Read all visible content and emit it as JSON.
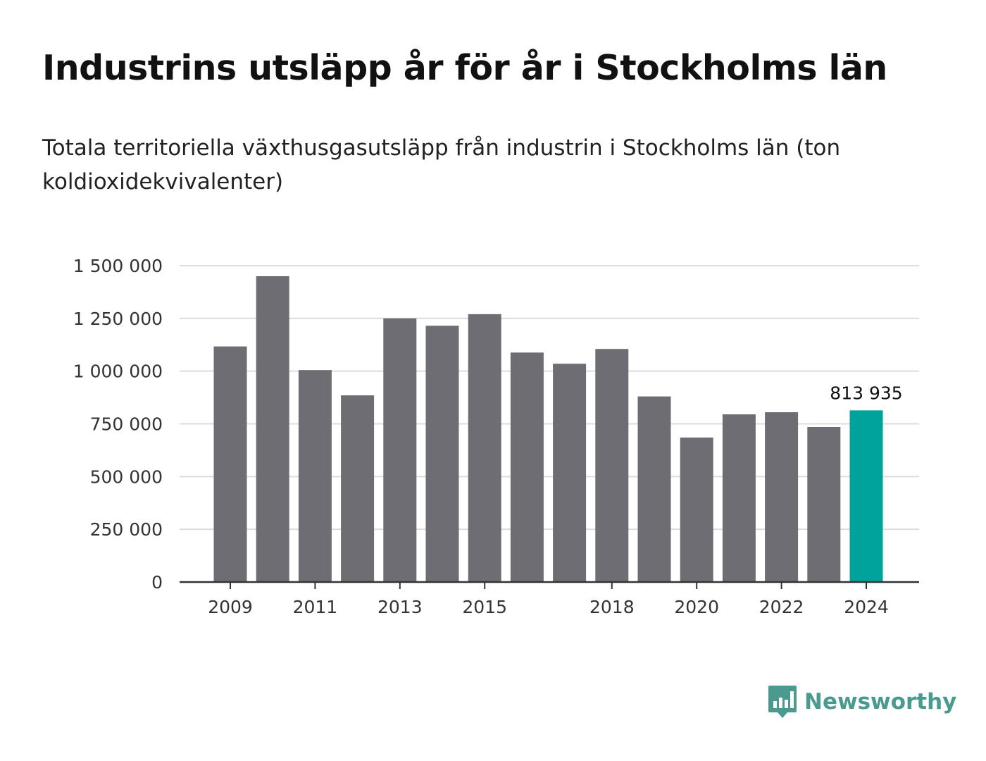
{
  "title": "Industrins utsläpp år för år i Stockholms län",
  "subtitle": "Totala territoriella växthusgasutsläpp från industrin i Stockholms län (ton koldioxidekvivalenter)",
  "logo": {
    "text": "Newsworthy",
    "icon": "newsworthy-bar-icon",
    "color": "#4a9a8f"
  },
  "colors": {
    "bar": "#6e6d73",
    "highlight": "#00a39b",
    "grid": "#dcdcdc",
    "axis": "#333333"
  },
  "chart_data": {
    "type": "bar",
    "categories": [
      "2009",
      "2010",
      "2011",
      "2012",
      "2013",
      "2014",
      "2015",
      "2016",
      "2017",
      "2018",
      "2019",
      "2020",
      "2021",
      "2022",
      "2023",
      "2024"
    ],
    "values": [
      1117000,
      1450000,
      1005000,
      885000,
      1250000,
      1215000,
      1270000,
      1088000,
      1035000,
      1105000,
      880000,
      685000,
      795000,
      805000,
      735000,
      813935
    ],
    "highlight_index": 15,
    "highlight_label": "813 935",
    "x_tick_labels": [
      "2009",
      "2011",
      "2013",
      "2015",
      "2018",
      "2020",
      "2022",
      "2024"
    ],
    "y_ticks": [
      0,
      250000,
      500000,
      750000,
      1000000,
      1250000,
      1500000
    ],
    "y_tick_labels": [
      "0",
      "250 000",
      "500 000",
      "750 000",
      "1 000 000",
      "1 250 000",
      "1 500 000"
    ],
    "ylim": [
      0,
      1500000
    ],
    "grid": true
  }
}
